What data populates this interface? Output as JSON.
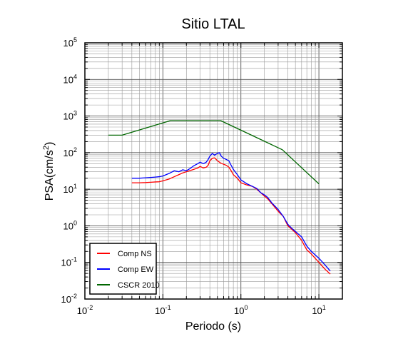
{
  "chart_data": {
    "type": "line",
    "title": "Sitio LTAL",
    "xlabel": "Periodo (s)",
    "ylabel_main": "PSA(cm/s",
    "ylabel_sup": "2",
    "ylabel_close": ")",
    "xscale": "log",
    "yscale": "log",
    "xlim": [
      0.01,
      20
    ],
    "ylim": [
      0.01,
      100000
    ],
    "grid": true,
    "legend_position": "bottom-left",
    "x_tick_labels": [
      {
        "base": "10",
        "exp": "-2"
      },
      {
        "base": "10",
        "exp": "-1"
      },
      {
        "base": "10",
        "exp": "0"
      },
      {
        "base": "10",
        "exp": "1"
      }
    ],
    "y_tick_labels": [
      {
        "base": "10",
        "exp": "-2"
      },
      {
        "base": "10",
        "exp": "-1"
      },
      {
        "base": "10",
        "exp": "0"
      },
      {
        "base": "10",
        "exp": "1"
      },
      {
        "base": "10",
        "exp": "2"
      },
      {
        "base": "10",
        "exp": "3"
      },
      {
        "base": "10",
        "exp": "4"
      },
      {
        "base": "10",
        "exp": "5"
      }
    ],
    "series": [
      {
        "name": "Comp NS",
        "color": "#ff0000",
        "points": [
          [
            0.04,
            15
          ],
          [
            0.05,
            15
          ],
          [
            0.06,
            15.2
          ],
          [
            0.07,
            15.5
          ],
          [
            0.08,
            15.8
          ],
          [
            0.09,
            16
          ],
          [
            0.1,
            17
          ],
          [
            0.12,
            19
          ],
          [
            0.14,
            22
          ],
          [
            0.16,
            25
          ],
          [
            0.18,
            28
          ],
          [
            0.2,
            30
          ],
          [
            0.22,
            32
          ],
          [
            0.25,
            35
          ],
          [
            0.28,
            38
          ],
          [
            0.3,
            42
          ],
          [
            0.33,
            38
          ],
          [
            0.36,
            40
          ],
          [
            0.38,
            45
          ],
          [
            0.4,
            60
          ],
          [
            0.43,
            70
          ],
          [
            0.46,
            72
          ],
          [
            0.5,
            60
          ],
          [
            0.55,
            52
          ],
          [
            0.6,
            48
          ],
          [
            0.65,
            45
          ],
          [
            0.7,
            40
          ],
          [
            0.75,
            32
          ],
          [
            0.8,
            25
          ],
          [
            0.9,
            20
          ],
          [
            1.0,
            15
          ],
          [
            1.2,
            13
          ],
          [
            1.4,
            12
          ],
          [
            1.6,
            10
          ],
          [
            1.8,
            8
          ],
          [
            2.0,
            6.5
          ],
          [
            2.2,
            5.5
          ],
          [
            2.5,
            4
          ],
          [
            3.0,
            2.5
          ],
          [
            3.5,
            1.8
          ],
          [
            4.0,
            1.0
          ],
          [
            4.5,
            0.8
          ],
          [
            5.0,
            0.65
          ],
          [
            6.0,
            0.4
          ],
          [
            7.0,
            0.22
          ],
          [
            8.0,
            0.17
          ],
          [
            10.0,
            0.1
          ],
          [
            12.0,
            0.065
          ],
          [
            14.0,
            0.048
          ]
        ]
      },
      {
        "name": "Comp EW",
        "color": "#0000ff",
        "points": [
          [
            0.04,
            20
          ],
          [
            0.05,
            20
          ],
          [
            0.06,
            20.5
          ],
          [
            0.07,
            21
          ],
          [
            0.08,
            21.5
          ],
          [
            0.09,
            22
          ],
          [
            0.1,
            23
          ],
          [
            0.12,
            27
          ],
          [
            0.14,
            32
          ],
          [
            0.16,
            30
          ],
          [
            0.18,
            34
          ],
          [
            0.2,
            32
          ],
          [
            0.22,
            36
          ],
          [
            0.25,
            44
          ],
          [
            0.28,
            50
          ],
          [
            0.3,
            55
          ],
          [
            0.33,
            50
          ],
          [
            0.36,
            55
          ],
          [
            0.38,
            65
          ],
          [
            0.4,
            80
          ],
          [
            0.43,
            95
          ],
          [
            0.46,
            85
          ],
          [
            0.5,
            95
          ],
          [
            0.53,
            100
          ],
          [
            0.56,
            80
          ],
          [
            0.6,
            70
          ],
          [
            0.65,
            65
          ],
          [
            0.7,
            60
          ],
          [
            0.75,
            45
          ],
          [
            0.8,
            35
          ],
          [
            0.9,
            25
          ],
          [
            1.0,
            18
          ],
          [
            1.2,
            14
          ],
          [
            1.4,
            12
          ],
          [
            1.6,
            10.5
          ],
          [
            1.8,
            8
          ],
          [
            2.0,
            7
          ],
          [
            2.2,
            6
          ],
          [
            2.5,
            4.2
          ],
          [
            3.0,
            2.8
          ],
          [
            3.5,
            1.8
          ],
          [
            4.0,
            1.1
          ],
          [
            4.5,
            0.85
          ],
          [
            5.0,
            0.7
          ],
          [
            6.0,
            0.5
          ],
          [
            7.0,
            0.28
          ],
          [
            8.0,
            0.2
          ],
          [
            10.0,
            0.13
          ],
          [
            12.0,
            0.085
          ],
          [
            14.0,
            0.058
          ]
        ]
      },
      {
        "name": "CSCR 2010",
        "color": "#006600",
        "points": [
          [
            0.02,
            300
          ],
          [
            0.03,
            300
          ],
          [
            0.125,
            750
          ],
          [
            0.55,
            750
          ],
          [
            3.4,
            120
          ],
          [
            10.0,
            14
          ]
        ]
      }
    ]
  }
}
